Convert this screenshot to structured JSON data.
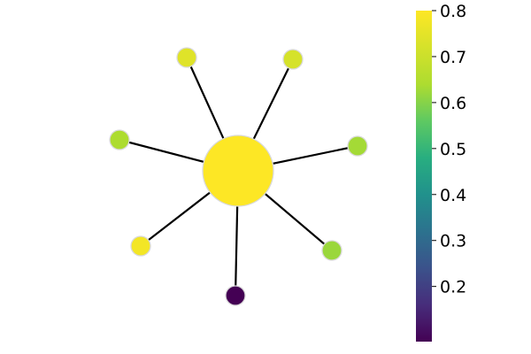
{
  "graph": {
    "type": "star",
    "hub": {
      "value": 0.8
    },
    "leaves": [
      {
        "value": 0.74
      },
      {
        "value": 0.72
      },
      {
        "value": 0.64
      },
      {
        "value": 0.63
      },
      {
        "value": 0.62
      },
      {
        "value": 0.78
      },
      {
        "value": 0.08
      }
    ],
    "edge_color": "#000000",
    "node_border_color": "#d9d9d9"
  },
  "colorbar": {
    "colormap": "viridis",
    "min": 0.08,
    "max": 0.8,
    "ticks": [
      "0.8",
      "0.7",
      "0.6",
      "0.5",
      "0.4",
      "0.3",
      "0.2"
    ]
  }
}
